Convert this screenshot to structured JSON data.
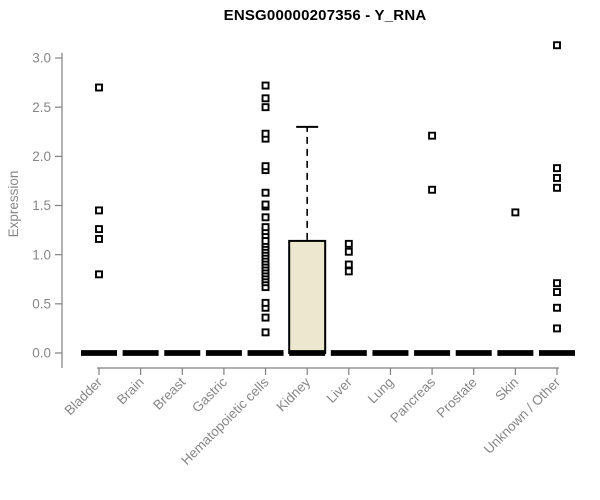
{
  "chart_data": {
    "type": "boxplot",
    "title": "ENSG00000207356 - Y_RNA",
    "ylabel": "Expression",
    "xlabel": "",
    "ylim": [
      0,
      3.2
    ],
    "yticks": [
      "0.0",
      "0.5",
      "1.0",
      "1.5",
      "2.0",
      "2.5",
      "3.0"
    ],
    "grid": false,
    "legend": null,
    "categories": [
      "Bladder",
      "Brain",
      "Breast",
      "Gastric",
      "Hematopoietic cells",
      "Kidney",
      "Liver",
      "Lung",
      "Pancreas",
      "Prostate",
      "Skin",
      "Unknown / Other"
    ],
    "series": [
      {
        "category": "Bladder",
        "q1": 0,
        "median": 0,
        "q3": 0,
        "whisker_low": 0,
        "whisker_high": 0,
        "outliers": [
          0.8,
          1.16,
          1.26,
          1.45,
          2.7
        ]
      },
      {
        "category": "Brain",
        "q1": 0,
        "median": 0,
        "q3": 0,
        "whisker_low": 0,
        "whisker_high": 0,
        "outliers": []
      },
      {
        "category": "Breast",
        "q1": 0,
        "median": 0,
        "q3": 0,
        "whisker_low": 0,
        "whisker_high": 0,
        "outliers": []
      },
      {
        "category": "Gastric",
        "q1": 0,
        "median": 0,
        "q3": 0,
        "whisker_low": 0,
        "whisker_high": 0,
        "outliers": []
      },
      {
        "category": "Hematopoietic cells",
        "q1": 0,
        "median": 0,
        "q3": 0,
        "whisker_low": 0,
        "whisker_high": 0,
        "outliers": [
          0.21,
          0.36,
          0.46,
          0.51,
          0.67,
          0.72,
          0.75,
          0.78,
          0.81,
          0.84,
          0.87,
          0.9,
          0.93,
          0.96,
          0.99,
          1.02,
          1.05,
          1.08,
          1.11,
          1.14,
          1.2,
          1.24,
          1.28,
          1.38,
          1.49,
          1.51,
          1.63,
          1.86,
          1.9,
          2.18,
          2.23,
          2.5,
          2.59,
          2.72
        ]
      },
      {
        "category": "Kidney",
        "q1": 0,
        "median": 0,
        "q3": 1.14,
        "whisker_low": 0,
        "whisker_high": 2.3,
        "outliers": []
      },
      {
        "category": "Liver",
        "q1": 0,
        "median": 0,
        "q3": 0,
        "whisker_low": 0,
        "whisker_high": 0,
        "outliers": [
          0.83,
          0.9,
          1.03,
          1.11
        ]
      },
      {
        "category": "Lung",
        "q1": 0,
        "median": 0,
        "q3": 0,
        "whisker_low": 0,
        "whisker_high": 0,
        "outliers": []
      },
      {
        "category": "Pancreas",
        "q1": 0,
        "median": 0,
        "q3": 0,
        "whisker_low": 0,
        "whisker_high": 0,
        "outliers": [
          1.66,
          2.21
        ]
      },
      {
        "category": "Prostate",
        "q1": 0,
        "median": 0,
        "q3": 0,
        "whisker_low": 0,
        "whisker_high": 0,
        "outliers": []
      },
      {
        "category": "Skin",
        "q1": 0,
        "median": 0,
        "q3": 0,
        "whisker_low": 0,
        "whisker_high": 0,
        "outliers": [
          1.43
        ]
      },
      {
        "category": "Unknown / Other",
        "q1": 0,
        "median": 0,
        "q3": 0,
        "whisker_low": 0,
        "whisker_high": 0,
        "outliers": [
          0.25,
          0.46,
          0.62,
          0.71,
          1.68,
          1.78,
          1.88,
          3.13
        ]
      }
    ],
    "colors": {
      "box_fill": "#ece8d0",
      "box_stroke": "#000000",
      "median": "#000000",
      "whisker": "#000000",
      "marker_stroke": "#000000",
      "marker_fill": "#ffffff",
      "axis": "#808080",
      "tick_label": "#878787",
      "title": "#000000"
    }
  }
}
